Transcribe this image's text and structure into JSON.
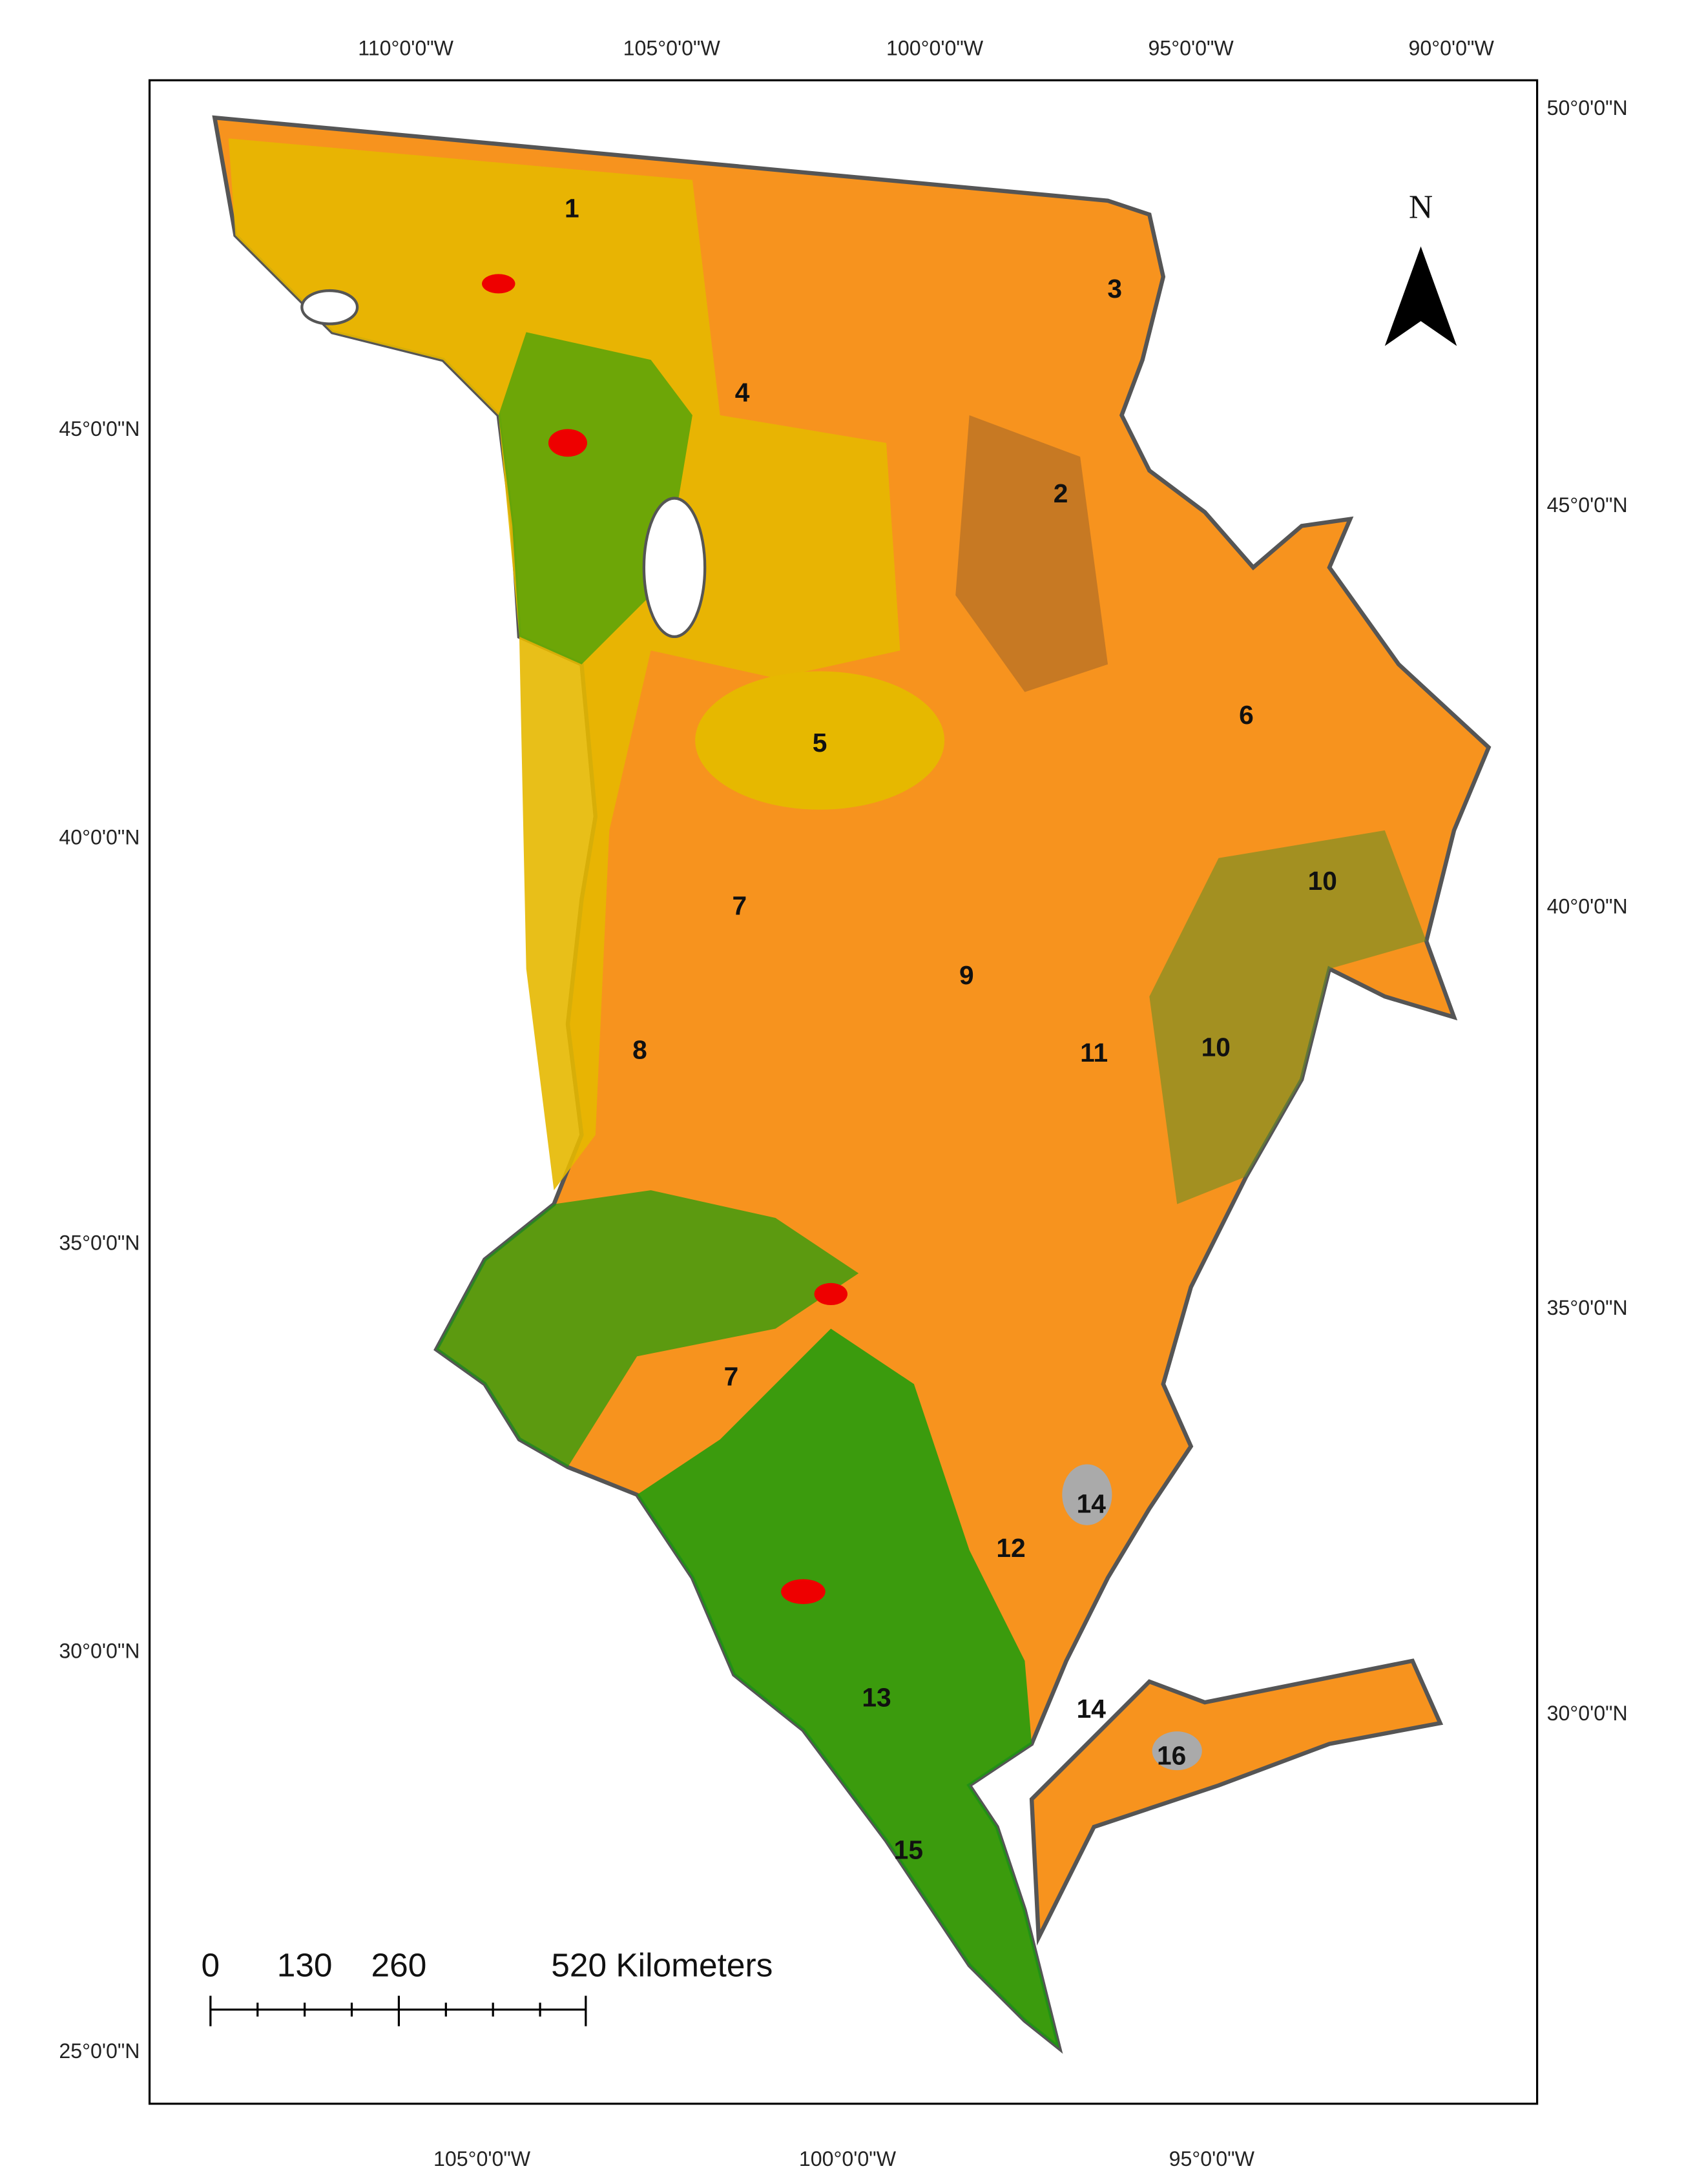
{
  "top_axis_labels": [
    "110°0'0\"W",
    "105°0'0\"W",
    "100°0'0\"W",
    "95°0'0\"W",
    "90°0'0\"W"
  ],
  "bottom_axis_labels": [
    "105°0'0\"W",
    "100°0'0\"W",
    "95°0'0\"W"
  ],
  "left_axis_labels": [
    "45°0'0\"N",
    "40°0'0\"N",
    "35°0'0\"N",
    "30°0'0\"N",
    "25°0'0\"N"
  ],
  "right_axis_labels": [
    "50°0'0\"N",
    "45°0'0\"N",
    "40°0'0\"N",
    "35°0'0\"N",
    "30°0'0\"N"
  ],
  "north_label": "N",
  "region_labels": [
    "1",
    "3",
    "4",
    "2",
    "6",
    "5",
    "10",
    "7",
    "9",
    "10",
    "11",
    "8",
    "7",
    "14",
    "12",
    "13",
    "14",
    "16",
    "15"
  ],
  "scale_bar": {
    "labels": [
      "0",
      "130",
      "260",
      "520 Kilometers"
    ]
  }
}
